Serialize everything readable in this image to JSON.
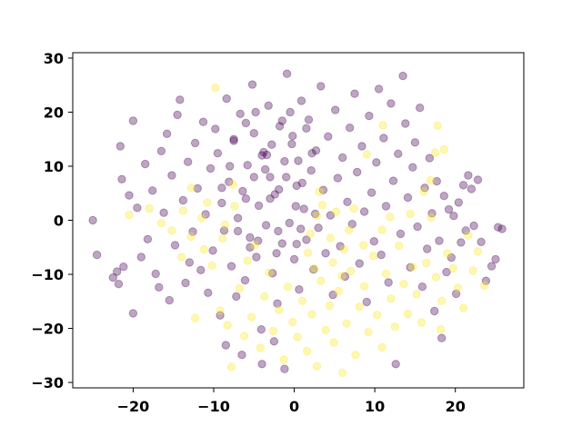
{
  "chart_data": {
    "type": "scatter",
    "title": "",
    "xlabel": "",
    "ylabel": "",
    "xlim": [
      -27.5,
      28.5
    ],
    "ylim": [
      -31,
      31
    ],
    "xticks": [
      -20,
      -10,
      0,
      10,
      20
    ],
    "yticks": [
      -30,
      -20,
      -10,
      0,
      10,
      20,
      30
    ],
    "xtick_labels": [
      "−20",
      "−10",
      "0",
      "10",
      "20"
    ],
    "ytick_labels": [
      "−30",
      "−20",
      "−10",
      "0",
      "10",
      "20",
      "30"
    ],
    "grid": false,
    "legend": "none",
    "point_alpha": 0.35,
    "classes": [
      {
        "color": "#440154",
        "points": [
          [
            -25,
            0
          ],
          [
            -24.5,
            -6.4
          ],
          [
            -22.5,
            -10.6
          ],
          [
            -22,
            -9.5
          ],
          [
            -21.8,
            -11.8
          ],
          [
            -21.6,
            13.7
          ],
          [
            -21.4,
            7.6
          ],
          [
            -21.2,
            -8.6
          ],
          [
            -20.5,
            4.6
          ],
          [
            -20,
            18.4
          ],
          [
            -20,
            -17.2
          ],
          [
            -19.5,
            2.3
          ],
          [
            -19,
            -6.8
          ],
          [
            -18.5,
            10.4
          ],
          [
            -18.2,
            -3.5
          ],
          [
            -17.6,
            5.5
          ],
          [
            -17.2,
            -9.9
          ],
          [
            -16.8,
            -12.4
          ],
          [
            -16.5,
            12.8
          ],
          [
            -16.2,
            1.4
          ],
          [
            -15.8,
            16
          ],
          [
            -15.5,
            -14.8
          ],
          [
            -15.2,
            8.3
          ],
          [
            -14.8,
            -4.6
          ],
          [
            -14.5,
            19.5
          ],
          [
            -14.2,
            22.3
          ],
          [
            -13.8,
            3.7
          ],
          [
            -13.5,
            -11.6
          ],
          [
            -13.2,
            10.8
          ],
          [
            -13,
            -7.8
          ],
          [
            -12.6,
            -2.1
          ],
          [
            -12.3,
            14.3
          ],
          [
            -12,
            5.9
          ],
          [
            -11.6,
            -9.2
          ],
          [
            -11.3,
            18.2
          ],
          [
            -11,
            1.1
          ],
          [
            -10.7,
            -13.4
          ],
          [
            -10.4,
            9.6
          ],
          [
            -10.1,
            -5.6
          ],
          [
            -9.8,
            16.9
          ],
          [
            -9.5,
            12.4
          ],
          [
            -9.2,
            -17.6
          ],
          [
            -9,
            3.2
          ],
          [
            -8.7,
            -1.9
          ],
          [
            -8.4,
            22.5
          ],
          [
            -8.1,
            7.1
          ],
          [
            -7.8,
            -8.5
          ],
          [
            -7.5,
            14.7
          ],
          [
            -7.2,
            -14.1
          ],
          [
            -7,
            0.4
          ],
          [
            -6.7,
            19.7
          ],
          [
            -6.4,
            5.4
          ],
          [
            -6.1,
            -11.1
          ],
          [
            -5.8,
            10.2
          ],
          [
            -5.5,
            -3.2
          ],
          [
            -5.2,
            25.1
          ],
          [
            -5,
            16.1
          ],
          [
            -4.7,
            -6.8
          ],
          [
            -4.4,
            2.7
          ],
          [
            -4.1,
            -20.2
          ],
          [
            -3.8,
            12.6
          ],
          [
            -3.5,
            -0.9
          ],
          [
            -3.2,
            21.2
          ],
          [
            -3,
            8
          ],
          [
            -2.7,
            -9.8
          ],
          [
            -2.4,
            4.8
          ],
          [
            -2.1,
            -15.4
          ],
          [
            -1.8,
            17.4
          ],
          [
            -1.5,
            -4.3
          ],
          [
            -1.2,
            10.9
          ],
          [
            -0.9,
            27.1
          ],
          [
            -0.6,
            -0.5
          ],
          [
            -0.3,
            14.1
          ],
          [
            0,
            -7.2
          ],
          [
            0.3,
            6.4
          ],
          [
            0.6,
            -12.8
          ],
          [
            0.9,
            22.1
          ],
          [
            1.2,
            2.1
          ],
          [
            1.5,
            -3.6
          ],
          [
            1.8,
            18.6
          ],
          [
            2.1,
            9.2
          ],
          [
            2.4,
            -9.1
          ],
          [
            2.7,
            12.9
          ],
          [
            3,
            -1.4
          ],
          [
            3.3,
            24.8
          ],
          [
            3.6,
            5.6
          ],
          [
            3.9,
            -6.1
          ],
          [
            4.2,
            15.5
          ],
          [
            4.5,
            0.9
          ],
          [
            4.8,
            -13.8
          ],
          [
            5.1,
            20.4
          ],
          [
            5.4,
            7.8
          ],
          [
            5.7,
            -4.8
          ],
          [
            6,
            11.6
          ],
          [
            6.3,
            -10.4
          ],
          [
            6.6,
            3.4
          ],
          [
            6.9,
            17.1
          ],
          [
            7.2,
            -0.7
          ],
          [
            7.5,
            23.4
          ],
          [
            7.8,
            8.9
          ],
          [
            8.1,
            -8
          ],
          [
            8.4,
            13.7
          ],
          [
            8.7,
            1.6
          ],
          [
            9,
            -15.1
          ],
          [
            9.3,
            19.3
          ],
          [
            9.6,
            5.1
          ],
          [
            9.9,
            -3.9
          ],
          [
            10.2,
            10.7
          ],
          [
            10.5,
            24.3
          ],
          [
            10.8,
            -6.4
          ],
          [
            11.1,
            15.2
          ],
          [
            11.4,
            2.6
          ],
          [
            11.7,
            -11.5
          ],
          [
            12,
            21.6
          ],
          [
            12.3,
            7.3
          ],
          [
            12.6,
            -26.6
          ],
          [
            12.9,
            12.3
          ],
          [
            13.2,
            -2.5
          ],
          [
            13.5,
            26.7
          ],
          [
            13.8,
            17.9
          ],
          [
            14.1,
            4.2
          ],
          [
            14.4,
            -8.7
          ],
          [
            14.7,
            9.8
          ],
          [
            15,
            14.4
          ],
          [
            15.3,
            -1.2
          ],
          [
            15.6,
            20.8
          ],
          [
            15.9,
            -12.3
          ],
          [
            16.2,
            6
          ],
          [
            16.5,
            -5.3
          ],
          [
            16.8,
            11.5
          ],
          [
            17.1,
            1.3
          ],
          [
            17.4,
            -16.8
          ],
          [
            17.7,
            7.2
          ],
          [
            18,
            -3.8
          ],
          [
            18.3,
            -21.8
          ],
          [
            18.6,
            4.5
          ],
          [
            18.9,
            -9.6
          ],
          [
            19.2,
            2
          ],
          [
            19.5,
            -6.9
          ],
          [
            19.8,
            0.8
          ],
          [
            20.1,
            -13.6
          ],
          [
            20.4,
            3.3
          ],
          [
            20.7,
            -4.1
          ],
          [
            21,
            6.5
          ],
          [
            21.3,
            -1.9
          ],
          [
            21.6,
            8.3
          ],
          [
            22,
            5.8
          ],
          [
            22.3,
            -1
          ],
          [
            22.8,
            7.5
          ],
          [
            23.2,
            -4
          ],
          [
            23.8,
            -11.2
          ],
          [
            24.5,
            -8.5
          ],
          [
            25,
            -7.2
          ],
          [
            25.3,
            -1.3
          ],
          [
            25.8,
            -1.6
          ],
          [
            -1.2,
            -27.5
          ],
          [
            -4,
            -26.6
          ],
          [
            -8.5,
            -23.1
          ],
          [
            -6.5,
            -24.9
          ],
          [
            -2.5,
            -22.4
          ],
          [
            -3,
            4
          ],
          [
            -2,
            -2
          ],
          [
            -1,
            8
          ],
          [
            0.5,
            11
          ],
          [
            -2.8,
            14
          ],
          [
            1.5,
            17
          ],
          [
            -0.5,
            20
          ],
          [
            0.2,
            2.6
          ],
          [
            -4.5,
            -3.8
          ],
          [
            -1.9,
            5.7
          ],
          [
            -3.6,
            9.4
          ],
          [
            0.8,
            -1.6
          ],
          [
            -0.2,
            15.6
          ],
          [
            2.6,
            1.2
          ],
          [
            -2.2,
            -6.1
          ],
          [
            1,
            6.9
          ],
          [
            -3.4,
            12.1
          ],
          [
            0.3,
            -4.4
          ],
          [
            -1.5,
            18.4
          ],
          [
            2.2,
            12.4
          ],
          [
            -6,
            4
          ],
          [
            -5,
            8
          ],
          [
            -4,
            12
          ],
          [
            -7,
            -2
          ],
          [
            -6,
            18
          ],
          [
            -8,
            10
          ],
          [
            -5.5,
            -5
          ],
          [
            -9,
            6
          ],
          [
            -7.5,
            15
          ],
          [
            -4.8,
            20
          ]
        ]
      },
      {
        "color": "#fde725",
        "points": [
          [
            -20.5,
            1
          ],
          [
            -18,
            2.2
          ],
          [
            -16.5,
            -0.5
          ],
          [
            -15.2,
            -1.9
          ],
          [
            -14,
            -6.8
          ],
          [
            -13.8,
            1.8
          ],
          [
            -12.8,
            -3
          ],
          [
            -12.3,
            -18.1
          ],
          [
            -11.5,
            0.4
          ],
          [
            -10.8,
            3.3
          ],
          [
            -10.2,
            -8.4
          ],
          [
            -9.8,
            24.5
          ],
          [
            -9.2,
            -16.7
          ],
          [
            -8.6,
            -0.8
          ],
          [
            -8.3,
            -19.4
          ],
          [
            -7.8,
            -27.1
          ],
          [
            -7.4,
            2.6
          ],
          [
            -6.8,
            -12.6
          ],
          [
            -6.2,
            -21.4
          ],
          [
            -5.8,
            -7.5
          ],
          [
            -5.3,
            -17.9
          ],
          [
            -4.9,
            -4.6
          ],
          [
            -4.2,
            -23.6
          ],
          [
            -3.7,
            -14.1
          ],
          [
            -3.1,
            -9.7
          ],
          [
            -2.6,
            -20.5
          ],
          [
            -1.9,
            -16.6
          ],
          [
            -1.3,
            -25.8
          ],
          [
            -0.8,
            -12.3
          ],
          [
            -0.2,
            -18.8
          ],
          [
            0.4,
            -21.6
          ],
          [
            1,
            -14.9
          ],
          [
            1.6,
            -24.2
          ],
          [
            2.2,
            -17.4
          ],
          [
            2.8,
            -27
          ],
          [
            3.3,
            -11.2
          ],
          [
            3.9,
            -20.3
          ],
          [
            4.4,
            -15.8
          ],
          [
            4.9,
            -22.6
          ],
          [
            5.5,
            -13.1
          ],
          [
            6,
            -28.2
          ],
          [
            6.5,
            -19.1
          ],
          [
            7,
            -9.4
          ],
          [
            7.6,
            -24.9
          ],
          [
            8.1,
            -16
          ],
          [
            8.7,
            -12.2
          ],
          [
            9.2,
            -20.7
          ],
          [
            9.8,
            -6.6
          ],
          [
            10.3,
            -17.5
          ],
          [
            10.9,
            -23.5
          ],
          [
            11.4,
            -9.9
          ],
          [
            12,
            -14.5
          ],
          [
            12.5,
            -19.7
          ],
          [
            13,
            -4.7
          ],
          [
            13.6,
            -11.8
          ],
          [
            14.1,
            -17.3
          ],
          [
            14.7,
            -8.6
          ],
          [
            15.2,
            -13.7
          ],
          [
            15.8,
            -18.9
          ],
          [
            16.4,
            -7.9
          ],
          [
            17,
            0.5
          ],
          [
            17.6,
            -10.5
          ],
          [
            18.3,
            -14.9
          ],
          [
            19,
            -6.1
          ],
          [
            19.7,
            -8.9
          ],
          [
            20.3,
            -12.5
          ],
          [
            21,
            -16.2
          ],
          [
            21.6,
            -2.8
          ],
          [
            22.2,
            -9.3
          ],
          [
            22.8,
            -5.8
          ],
          [
            23.6,
            -12.1
          ],
          [
            18.2,
            -20.2
          ],
          [
            2,
            -2.5
          ],
          [
            3.5,
            2.8
          ],
          [
            2.8,
            0.8
          ],
          [
            4.5,
            -3.3
          ],
          [
            5.2,
            1.6
          ],
          [
            3.1,
            5.3
          ],
          [
            6.8,
            -1.8
          ],
          [
            7.4,
            2.2
          ],
          [
            8.6,
            -4.6
          ],
          [
            1.7,
            -6
          ],
          [
            4.8,
            -7.8
          ],
          [
            6.2,
            -5.4
          ],
          [
            2.5,
            -8.9
          ],
          [
            5.9,
            -10.3
          ],
          [
            10.9,
            -1.8
          ],
          [
            11.9,
            0.6
          ],
          [
            14.4,
            1.2
          ],
          [
            16.1,
            5.3
          ],
          [
            16.9,
            7.4
          ],
          [
            18.6,
            13.1
          ],
          [
            17.8,
            17.5
          ],
          [
            17.5,
            12.5
          ],
          [
            11,
            17.6
          ],
          [
            9,
            12.2
          ],
          [
            -12.8,
            6
          ],
          [
            -11.2,
            -5.4
          ],
          [
            -8.9,
            -3.4
          ],
          [
            -7.6,
            6.6
          ]
        ]
      }
    ]
  }
}
